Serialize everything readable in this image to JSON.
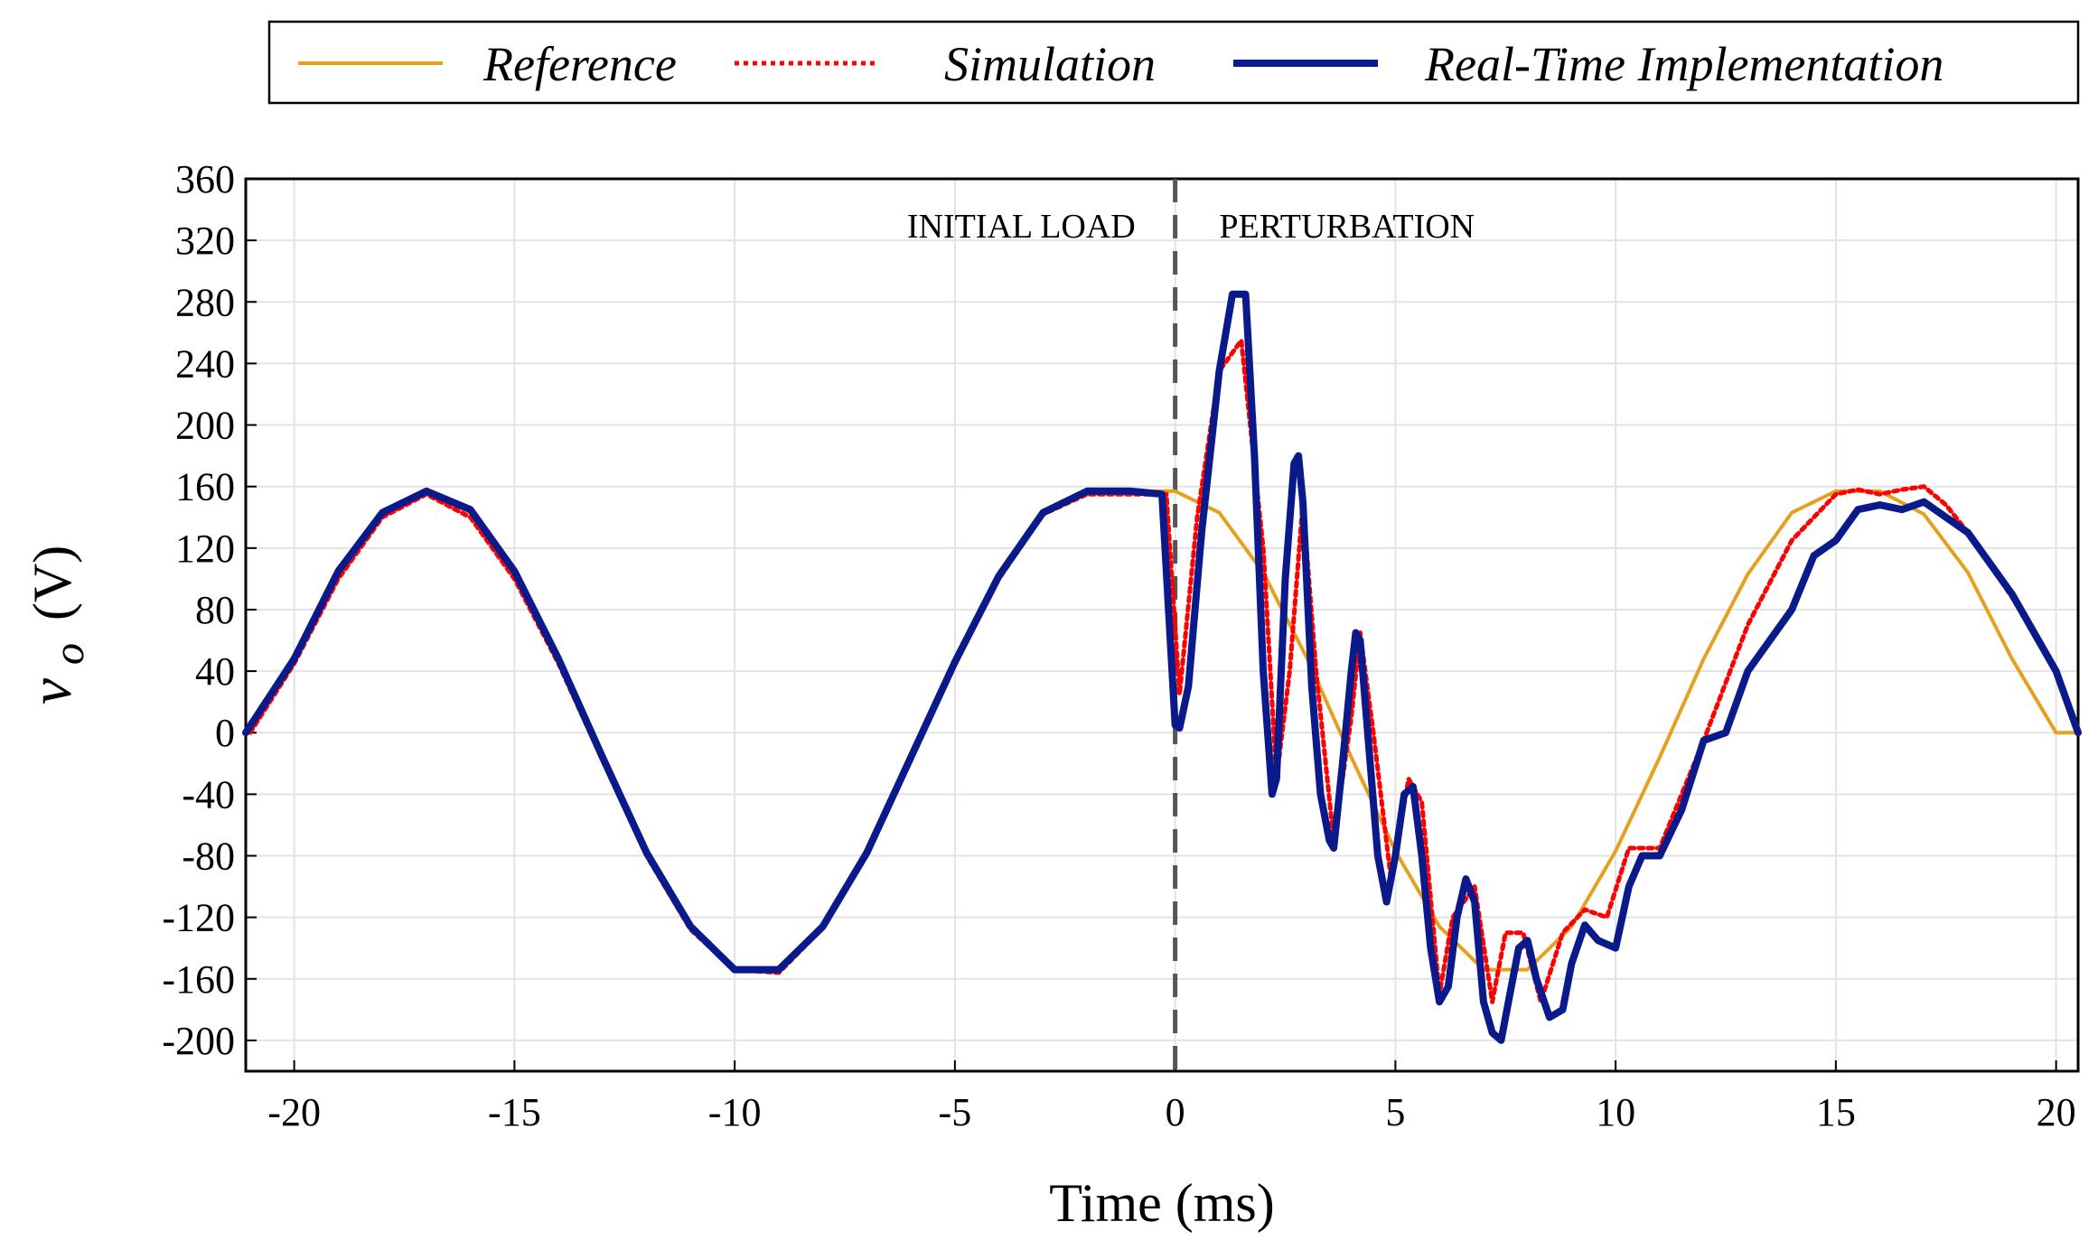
{
  "chart_data": {
    "type": "line",
    "title": "",
    "xlabel": "Time (ms)",
    "ylabel": {
      "symbol": "v",
      "subscript": "o",
      "unit": "(V)"
    },
    "xlim": [
      -21.1,
      20.5
    ],
    "ylim": [
      -220,
      360
    ],
    "xticks": [
      -20,
      -15,
      -10,
      -5,
      0,
      5,
      10,
      15,
      20
    ],
    "yticks": [
      360,
      320,
      280,
      240,
      200,
      160,
      120,
      80,
      40,
      0,
      -40,
      -80,
      -120,
      -160,
      -200
    ],
    "grid": true,
    "legend_position": "top",
    "annotations": [
      {
        "text": "INITIAL LOAD",
        "x": -0.9,
        "y": 330,
        "anchor": "end"
      },
      {
        "text": "PERTURBATION",
        "x": 1.0,
        "y": 330,
        "anchor": "start"
      }
    ],
    "event_marker": {
      "x": 0,
      "style": "dashed",
      "color": "#555555"
    },
    "series": [
      {
        "name": "Reference",
        "color": "#E5A11D",
        "style": "solid",
        "x": [
          -21,
          -20,
          -19,
          -18,
          -17,
          -16,
          -15,
          -14,
          -13,
          -12,
          -11,
          -10,
          -9,
          -8,
          -7,
          -6,
          -5,
          -4,
          -3,
          -2,
          -1,
          0,
          1,
          2,
          3,
          4,
          5,
          6,
          7,
          8,
          9,
          10,
          11,
          12,
          13,
          14,
          15,
          16,
          17,
          18,
          19,
          20,
          20.5
        ],
        "y": [
          0,
          48,
          103,
          143,
          157,
          143,
          103,
          48,
          -16,
          -77,
          -126,
          -154,
          -154,
          -126,
          -77,
          -16,
          48,
          103,
          143,
          157,
          157,
          157,
          143,
          104,
          48,
          -16,
          -77,
          -126,
          -154,
          -154,
          -126,
          -77,
          -16,
          48,
          103,
          143,
          157,
          157,
          142,
          104,
          48,
          0,
          0
        ]
      },
      {
        "name": "Simulation",
        "color": "#FF0000",
        "style": "dotted",
        "x": [
          -21,
          -20,
          -19,
          -18,
          -17,
          -16,
          -15,
          -14,
          -13,
          -12,
          -11,
          -10,
          -9,
          -8,
          -7,
          -6,
          -5,
          -4,
          -3,
          -2,
          -1,
          -0.2,
          0.1,
          0.5,
          1,
          1.5,
          2,
          2.3,
          2.6,
          2.9,
          3.2,
          3.6,
          4.0,
          4.2,
          4.5,
          4.9,
          5.3,
          5.6,
          6.0,
          6.3,
          6.8,
          7.2,
          7.5,
          7.9,
          8.3,
          8.8,
          9.3,
          9.8,
          10.3,
          11,
          12,
          13,
          14,
          15,
          15.5,
          16,
          16.5,
          17,
          17.5,
          18,
          19,
          20,
          20.5
        ],
        "y": [
          0,
          45,
          100,
          140,
          155,
          140,
          100,
          45,
          -18,
          -80,
          -128,
          -154,
          -156,
          -127,
          -78,
          -18,
          46,
          100,
          142,
          155,
          155,
          155,
          25,
          140,
          235,
          255,
          120,
          -30,
          40,
          150,
          40,
          -70,
          10,
          65,
          0,
          -95,
          -30,
          -45,
          -170,
          -120,
          -100,
          -175,
          -130,
          -130,
          -175,
          -130,
          -115,
          -120,
          -75,
          -75,
          -5,
          70,
          125,
          155,
          158,
          155,
          158,
          160,
          148,
          130,
          88,
          40,
          0
        ]
      },
      {
        "name": "Real-Time Implementation",
        "color": "#0A1A8A",
        "style": "solid",
        "x": [
          -21.1,
          -20,
          -19,
          -18,
          -17,
          -16,
          -15,
          -14,
          -13,
          -12,
          -11,
          -10,
          -9,
          -8,
          -7,
          -6,
          -5,
          -4,
          -3,
          -2,
          -1,
          -0.3,
          0,
          0.1,
          0.3,
          0.6,
          1,
          1.3,
          1.6,
          1.8,
          2.0,
          2.2,
          2.3,
          2.5,
          2.7,
          2.8,
          2.9,
          3.1,
          3.3,
          3.5,
          3.6,
          3.8,
          4.0,
          4.1,
          4.2,
          4.4,
          4.6,
          4.8,
          5.0,
          5.2,
          5.4,
          5.6,
          5.8,
          6.0,
          6.2,
          6.4,
          6.6,
          6.8,
          7.0,
          7.2,
          7.4,
          7.6,
          7.8,
          8.0,
          8.2,
          8.5,
          8.8,
          9.0,
          9.3,
          9.6,
          10.0,
          10.3,
          10.6,
          11.0,
          11.5,
          12,
          12.5,
          13,
          14,
          14.5,
          15,
          15.5,
          16,
          16.5,
          17,
          18,
          19,
          20,
          20.5
        ],
        "y": [
          0,
          48,
          105,
          143,
          157,
          145,
          105,
          48,
          -16,
          -78,
          -126,
          -154,
          -154,
          -126,
          -78,
          -16,
          46,
          102,
          143,
          157,
          157,
          155,
          5,
          3,
          30,
          130,
          235,
          285,
          285,
          180,
          40,
          -40,
          -30,
          100,
          175,
          180,
          150,
          30,
          -40,
          -70,
          -75,
          -20,
          40,
          65,
          60,
          -10,
          -80,
          -110,
          -80,
          -40,
          -35,
          -80,
          -140,
          -175,
          -165,
          -120,
          -95,
          -110,
          -175,
          -195,
          -200,
          -170,
          -140,
          -135,
          -160,
          -185,
          -180,
          -150,
          -125,
          -135,
          -140,
          -100,
          -80,
          -80,
          -50,
          -5,
          0,
          40,
          80,
          115,
          125,
          145,
          148,
          145,
          150,
          130,
          90,
          40,
          0
        ]
      }
    ]
  }
}
